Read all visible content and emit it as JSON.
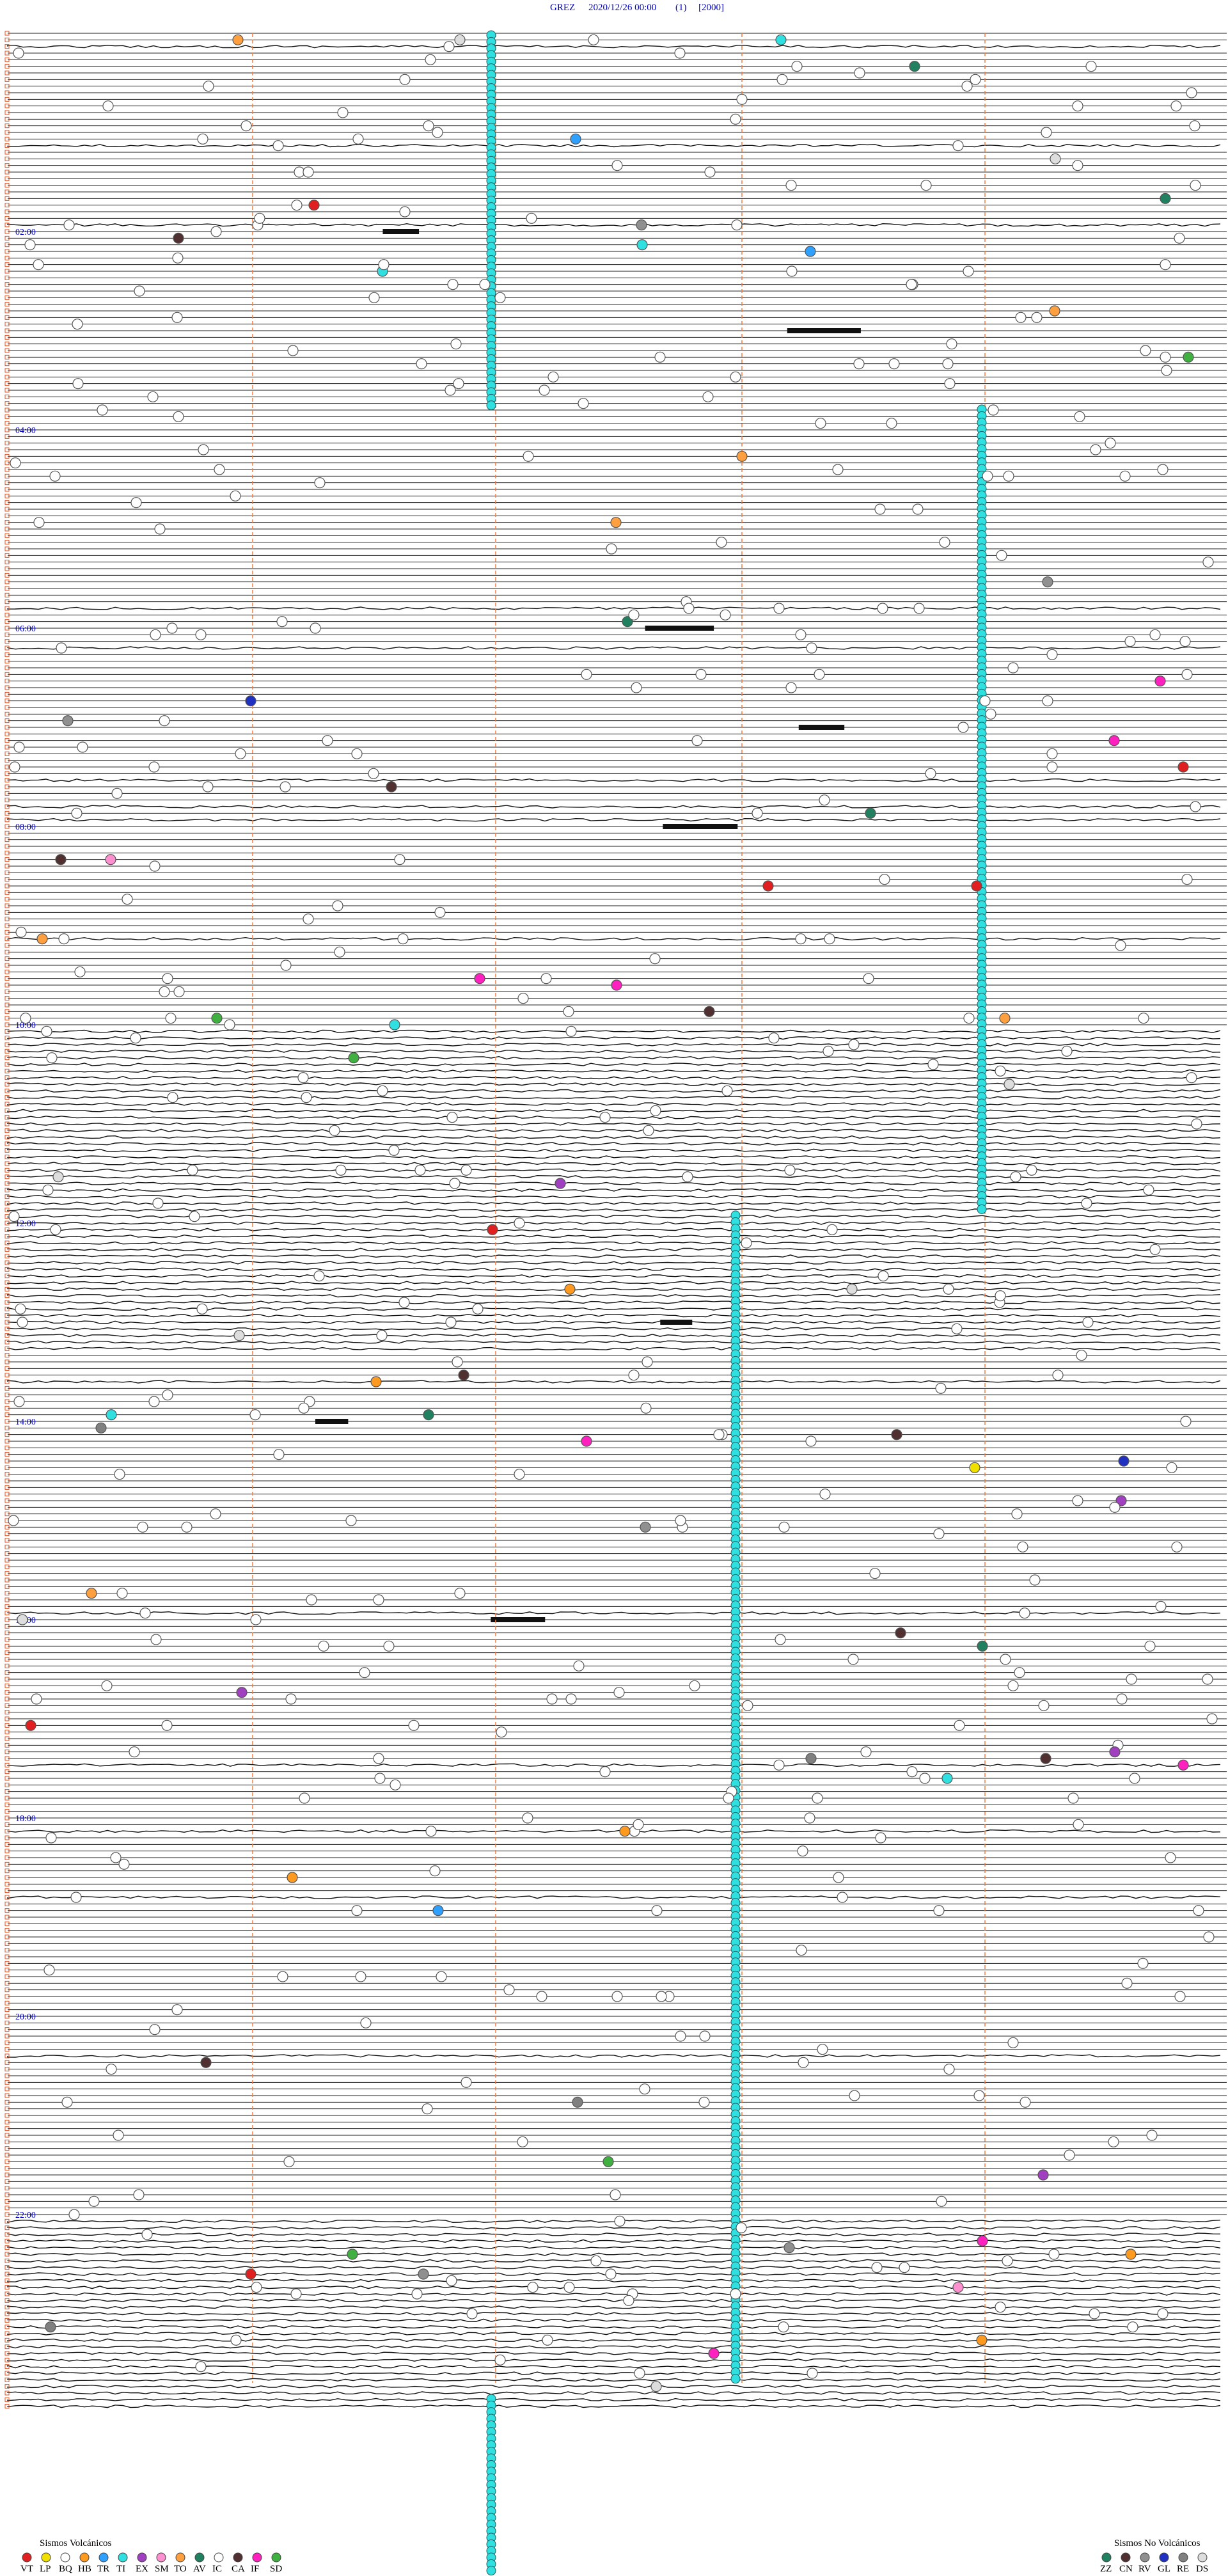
{
  "header": {
    "station": "GREZ",
    "datetime": "2020/12/26 00:00",
    "page": "(1)",
    "scale": "[2000]"
  },
  "hour_labels": [
    "02:00",
    "04:00",
    "06:00",
    "08:00",
    "10:00",
    "12:00",
    "14:00",
    "16:00",
    "18:00",
    "20:00",
    "22:00"
  ],
  "legend_volcanic": {
    "title": "Sismos Volcánicos",
    "items": [
      {
        "label": "VT",
        "color": "#e02020"
      },
      {
        "label": "LP",
        "color": "#f0e000"
      },
      {
        "label": "BQ",
        "color": "#ffffff"
      },
      {
        "label": "HB",
        "color": "#ff9a20"
      },
      {
        "label": "TR",
        "color": "#30a0ff"
      },
      {
        "label": "TI",
        "color": "#30e0e0"
      },
      {
        "label": "EX",
        "color": "#a040c0"
      },
      {
        "label": "SM",
        "color": "#ff90d0"
      },
      {
        "label": "TO",
        "color": "#ffa040"
      },
      {
        "label": "AV",
        "color": "#208060"
      },
      {
        "label": "IC",
        "color": "#ffffff"
      },
      {
        "label": "CA",
        "color": "#503030"
      },
      {
        "label": "IF",
        "color": "#ff20c0"
      },
      {
        "label": "SD",
        "color": "#40b040"
      }
    ]
  },
  "legend_nonvolcanic": {
    "title": "Sismos No Volcánicos",
    "items": [
      {
        "label": "ZZ",
        "color": "#208060"
      },
      {
        "label": "CN",
        "color": "#503030"
      },
      {
        "label": "RV",
        "color": "#909090"
      },
      {
        "label": "GL",
        "color": "#2030c0"
      },
      {
        "label": "RE",
        "color": "#808080"
      },
      {
        "label": "DS",
        "color": "#dddddd"
      }
    ]
  }
}
